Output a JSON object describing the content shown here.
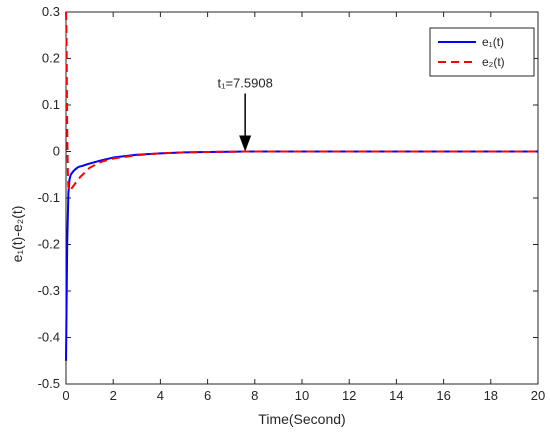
{
  "chart_data": {
    "type": "line",
    "xlabel": "Time(Second)",
    "ylabel": "e₁(t)-e₂(t)",
    "xlim": [
      0,
      20
    ],
    "ylim": [
      -0.5,
      0.3
    ],
    "x_ticks": [
      0,
      2,
      4,
      6,
      8,
      10,
      12,
      14,
      16,
      18,
      20
    ],
    "y_ticks": [
      -0.5,
      -0.4,
      -0.3,
      -0.2,
      -0.1,
      0,
      0.1,
      0.2,
      0.3
    ],
    "x_tick_labels": [
      "0",
      "2",
      "4",
      "6",
      "8",
      "10",
      "12",
      "14",
      "16",
      "18",
      "20"
    ],
    "y_tick_labels": [
      "-0.5",
      "-0.4",
      "-0.3",
      "-0.2",
      "-0.1",
      "0",
      "0.1",
      "0.2",
      "0.3"
    ],
    "grid": false,
    "legend_position": "top-right",
    "series": [
      {
        "name": "e₁(t)",
        "color": "#0000ff",
        "dash": "solid",
        "x": [
          0,
          0.02,
          0.05,
          0.1,
          0.15,
          0.2,
          0.3,
          0.4,
          0.5,
          0.6,
          0.7,
          0.8,
          1.0,
          1.5,
          2,
          3,
          4,
          5,
          6,
          7,
          7.59,
          8,
          10,
          12,
          14,
          16,
          18,
          20
        ],
        "y": [
          -0.45,
          -0.35,
          -0.2,
          -0.09,
          -0.06,
          -0.05,
          -0.043,
          -0.038,
          -0.034,
          -0.032,
          -0.031,
          -0.029,
          -0.026,
          -0.019,
          -0.013,
          -0.007,
          -0.004,
          -0.002,
          -0.001,
          -0.0005,
          0,
          0,
          0,
          0,
          0,
          0,
          0,
          0
        ]
      },
      {
        "name": "e₂(t)",
        "color": "#ff0000",
        "dash": "dashed",
        "x": [
          0,
          0.02,
          0.05,
          0.08,
          0.1,
          0.15,
          0.2,
          0.3,
          0.4,
          0.5,
          0.6,
          0.8,
          1.0,
          1.5,
          2,
          3,
          4,
          5,
          6,
          7,
          7.59,
          8,
          10,
          12,
          14,
          16,
          18,
          20
        ],
        "y": [
          0.3,
          0.25,
          0.05,
          -0.05,
          -0.075,
          -0.085,
          -0.082,
          -0.075,
          -0.068,
          -0.062,
          -0.055,
          -0.045,
          -0.035,
          -0.022,
          -0.015,
          -0.008,
          -0.004,
          -0.002,
          -0.001,
          -0.0005,
          0,
          0,
          0,
          0,
          0,
          0,
          0,
          0
        ]
      }
    ],
    "annotations": [
      {
        "text": "t₁=7.5908",
        "x": 7.5908,
        "y": 0,
        "arrow": true
      }
    ]
  }
}
